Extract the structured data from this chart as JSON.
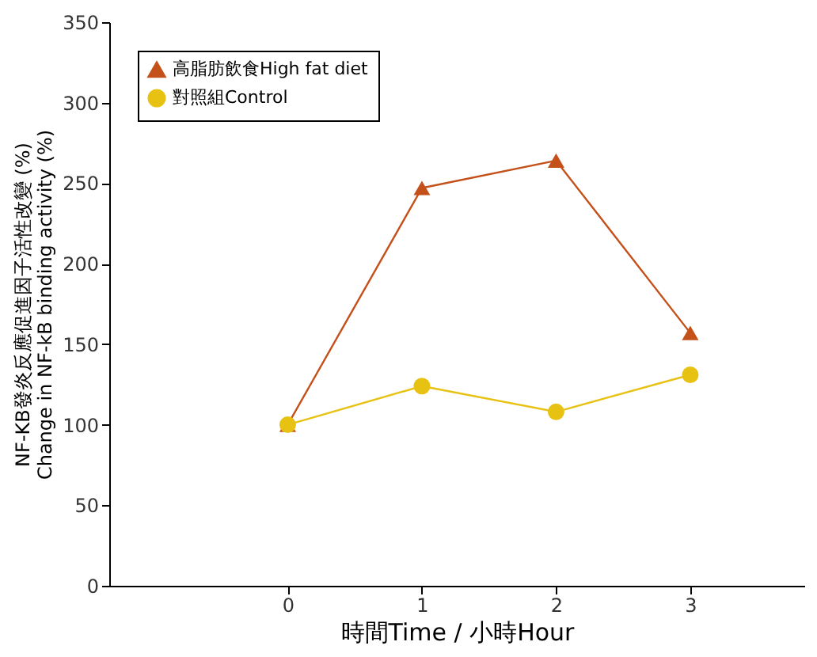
{
  "chart_data": {
    "type": "line",
    "xlabel": "時間Time / 小時Hour",
    "ylabel": "NF-KB發炎反應促進因子活性改變 (%)\nChange in NF-kB binding activity (%)",
    "x": [
      0,
      1,
      2,
      3
    ],
    "xlim": [
      -1.33,
      3.85
    ],
    "xticks": [
      0,
      1,
      2,
      3
    ],
    "ylim": [
      0,
      350
    ],
    "yticks": [
      0,
      50,
      100,
      150,
      200,
      250,
      300,
      350
    ],
    "series": [
      {
        "name": "高脂肪飲食High fat diet",
        "color": "#c4501a",
        "marker": "triangle",
        "values": [
          100,
          247,
          264,
          157
        ]
      },
      {
        "name": "對照組Control",
        "color": "#e8c213",
        "marker": "circle",
        "values": [
          100,
          124,
          108,
          131
        ]
      }
    ],
    "legend": "top left",
    "grid": false,
    "line_style": "solid"
  }
}
